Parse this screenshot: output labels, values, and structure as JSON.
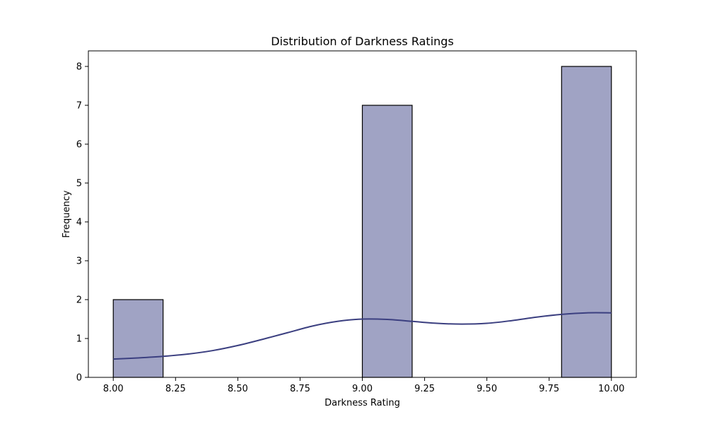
{
  "chart_data": {
    "type": "bar",
    "title": "Distribution of Darkness Ratings",
    "xlabel": "Darkness Rating",
    "ylabel": "Frequency",
    "xlim": [
      7.9,
      10.1
    ],
    "ylim": [
      0,
      8.4
    ],
    "xticks": [
      "8.00",
      "8.25",
      "8.50",
      "8.75",
      "9.00",
      "9.25",
      "9.50",
      "9.75",
      "10.00"
    ],
    "xtick_values": [
      8.0,
      8.25,
      8.5,
      8.75,
      9.0,
      9.25,
      9.5,
      9.75,
      10.0
    ],
    "yticks": [
      "0",
      "1",
      "2",
      "3",
      "4",
      "5",
      "6",
      "7",
      "8"
    ],
    "ytick_values": [
      0,
      1,
      2,
      3,
      4,
      5,
      6,
      7,
      8
    ],
    "bins": [
      {
        "x0": 8.0,
        "x1": 8.2,
        "count": 2
      },
      {
        "x0": 9.0,
        "x1": 9.2,
        "count": 7
      },
      {
        "x0": 9.8,
        "x1": 10.0,
        "count": 8
      }
    ],
    "kde": {
      "x": [
        8.0,
        8.1,
        8.2,
        8.3,
        8.4,
        8.5,
        8.6,
        8.7,
        8.8,
        8.9,
        9.0,
        9.1,
        9.2,
        9.3,
        9.4,
        9.5,
        9.6,
        9.7,
        9.8,
        9.9,
        10.0
      ],
      "y": [
        0.47,
        0.5,
        0.54,
        0.6,
        0.69,
        0.82,
        0.98,
        1.15,
        1.32,
        1.44,
        1.5,
        1.49,
        1.44,
        1.39,
        1.37,
        1.39,
        1.46,
        1.55,
        1.62,
        1.66,
        1.66
      ]
    },
    "colors": {
      "bar_fill": "#a0a3c4",
      "bar_edge": "#000000",
      "kde_line": "#3b3f80"
    },
    "grid": false,
    "legend": "none"
  }
}
